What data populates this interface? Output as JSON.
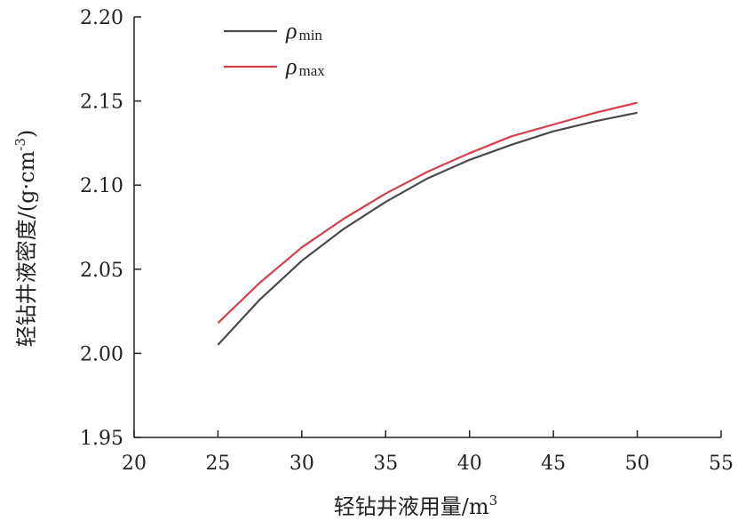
{
  "chart_data": {
    "type": "line",
    "xlabel": "轻钻井液用量/m",
    "xlabel_sup": "3",
    "ylabel_main": "轻钻井液密度/(g·cm",
    "ylabel_sup": "-3",
    "ylabel_close": ")",
    "xlim": [
      20,
      55
    ],
    "ylim": [
      1.95,
      2.2
    ],
    "x_ticks": [
      20,
      25,
      30,
      35,
      40,
      45,
      50,
      55
    ],
    "y_ticks": [
      1.95,
      2.0,
      2.05,
      2.1,
      2.15,
      2.2
    ],
    "x_tick_labels": [
      "20",
      "25",
      "30",
      "35",
      "40",
      "45",
      "50",
      "55"
    ],
    "y_tick_labels": [
      "1.95",
      "2.00",
      "2.05",
      "2.10",
      "2.15",
      "2.20"
    ],
    "grid": false,
    "legend_position": "top-left",
    "series": [
      {
        "name": "ρ",
        "name_sub": "min",
        "color": "#4a4a4a",
        "x": [
          25,
          27.5,
          30,
          32.5,
          35,
          37.5,
          40,
          42.5,
          45,
          47.5,
          50
        ],
        "y": [
          2.005,
          2.032,
          2.055,
          2.074,
          2.09,
          2.104,
          2.115,
          2.124,
          2.132,
          2.138,
          2.143
        ]
      },
      {
        "name": "ρ",
        "name_sub": "max",
        "color": "#d6404a",
        "x": [
          25,
          27.5,
          30,
          32.5,
          35,
          37.5,
          40,
          42.5,
          45,
          47.5,
          50
        ],
        "y": [
          2.018,
          2.042,
          2.063,
          2.08,
          2.095,
          2.108,
          2.119,
          2.129,
          2.136,
          2.143,
          2.149
        ]
      }
    ]
  }
}
